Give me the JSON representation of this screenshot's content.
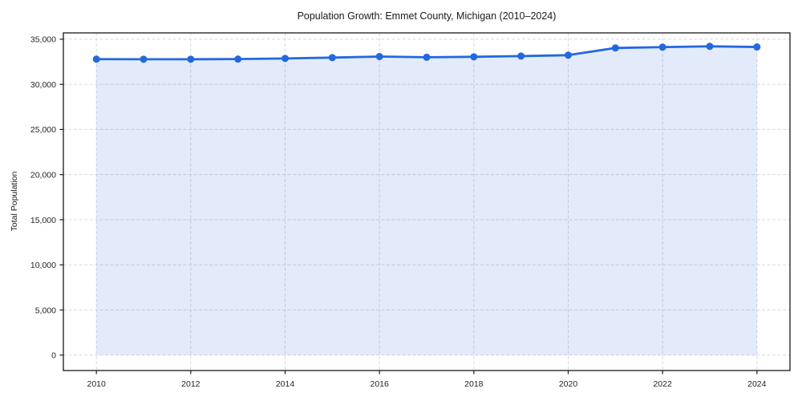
{
  "chart_data": {
    "type": "area",
    "title": "Population Growth: Emmet County, Michigan (2010–2024)",
    "xlabel": "",
    "ylabel": "Total Population",
    "series_name": "Total Population",
    "x": [
      2010,
      2011,
      2012,
      2013,
      2014,
      2015,
      2016,
      2017,
      2018,
      2019,
      2020,
      2021,
      2022,
      2023,
      2024
    ],
    "values": [
      32790,
      32780,
      32780,
      32800,
      32870,
      32960,
      33080,
      33000,
      33050,
      33130,
      33230,
      34030,
      34120,
      34210,
      34140
    ],
    "x_ticks": [
      2010,
      2012,
      2014,
      2016,
      2018,
      2020,
      2022,
      2024
    ],
    "x_tick_labels": [
      "2010",
      "2012",
      "2014",
      "2016",
      "2018",
      "2020",
      "2022",
      "2024"
    ],
    "y_ticks": [
      0,
      5000,
      10000,
      15000,
      20000,
      25000,
      30000,
      35000
    ],
    "y_tick_labels": [
      "0",
      "5,000",
      "10,000",
      "15,000",
      "20,000",
      "25,000",
      "30,000",
      "35,000"
    ],
    "xlim": [
      2009.3,
      2024.7
    ],
    "ylim": [
      -1710,
      35700
    ],
    "grid": true,
    "grid_style": "dashed",
    "legend": "none",
    "markers": true,
    "colors": {
      "line": "#2368e0",
      "marker": "#2368e0",
      "fill": "rgba(35, 104, 224, 0.13)",
      "grid": "#d8d8d8",
      "spine": "#1a1a1a",
      "text": "#262626",
      "background": "#ffffff"
    }
  }
}
